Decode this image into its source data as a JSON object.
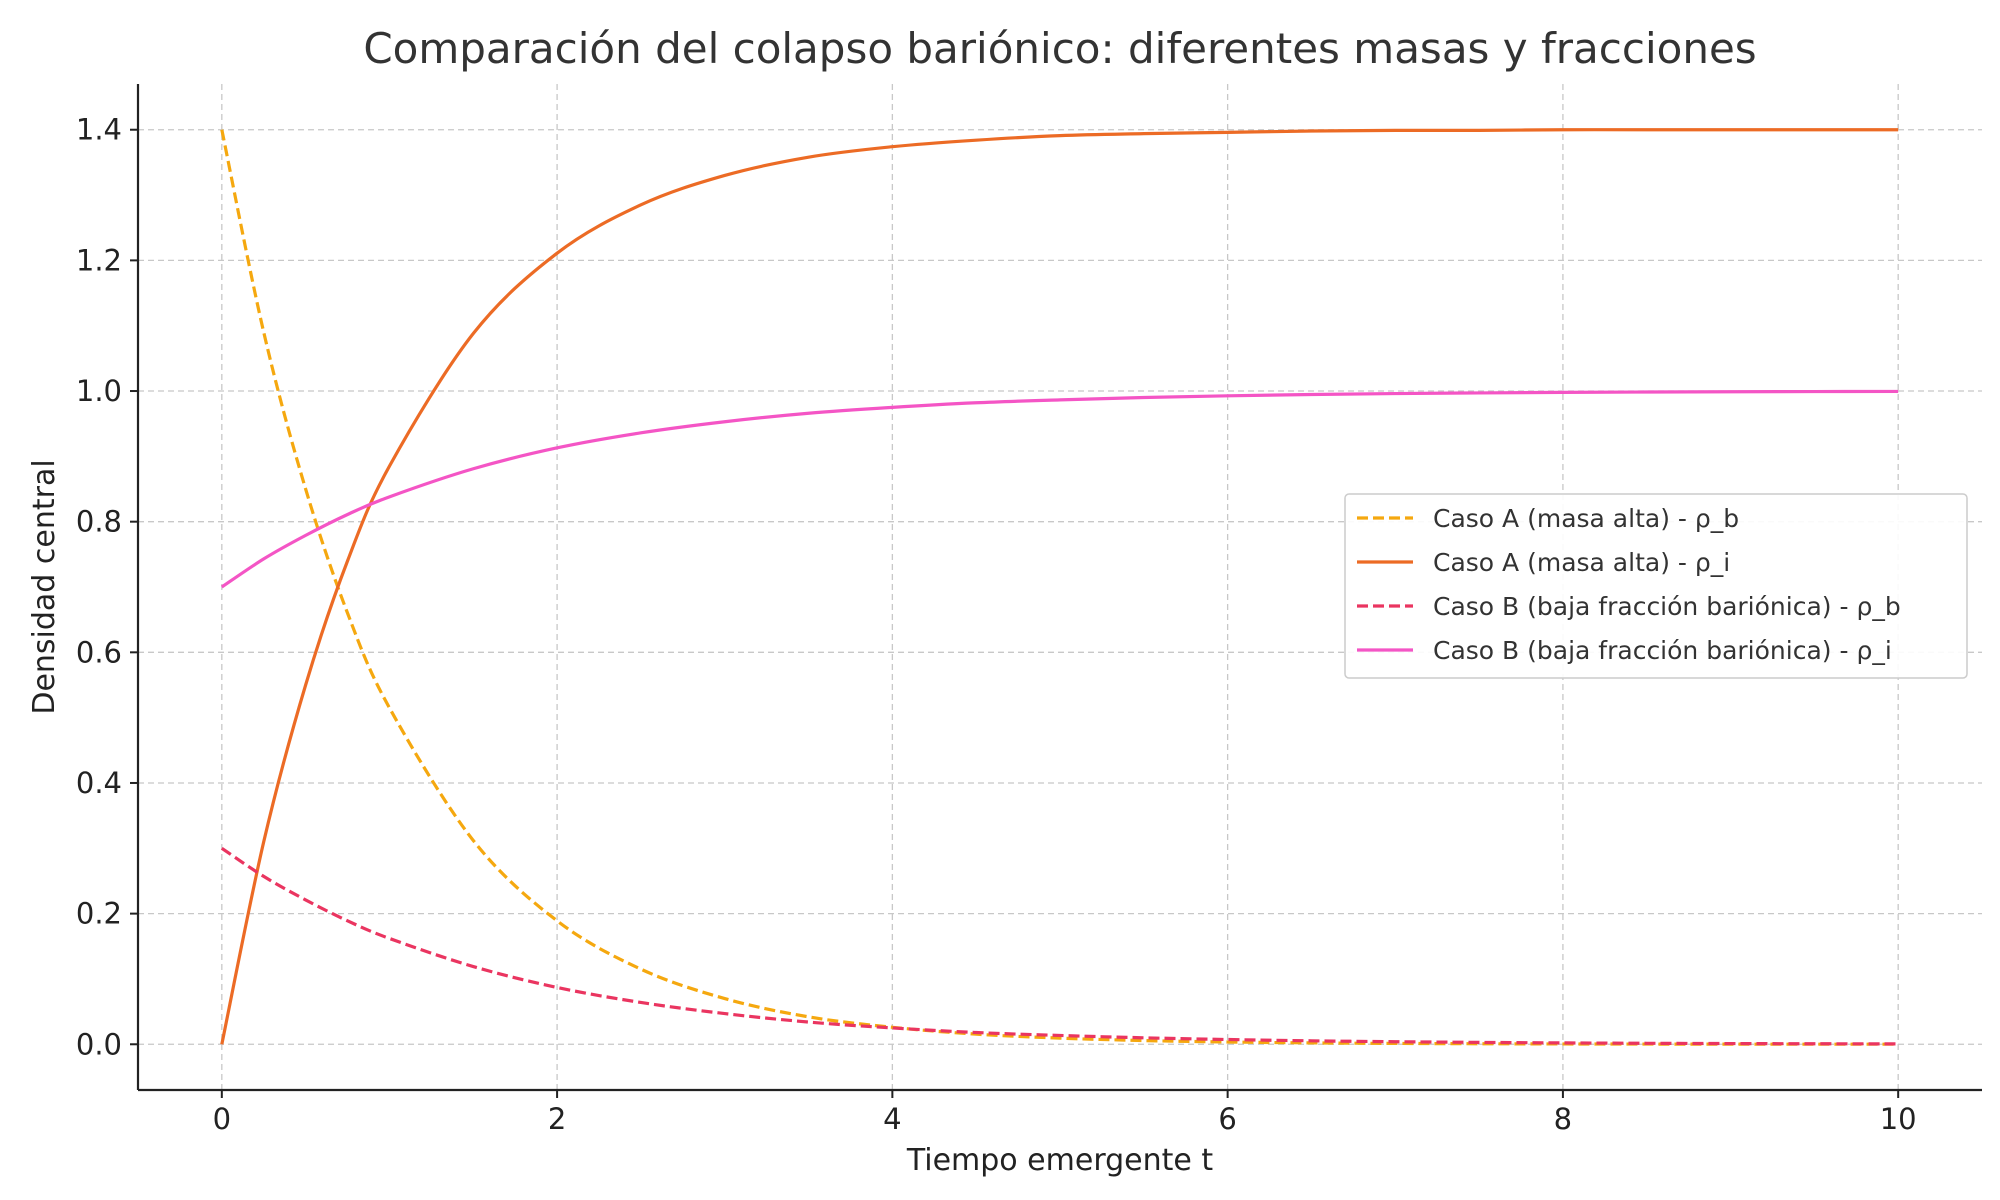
{
  "chart_data": {
    "type": "line",
    "title": "Comparación del colapso bariónico: diferentes masas y fracciones",
    "xlabel": "Tiempo emergente t",
    "ylabel": "Densidad central",
    "xlim": [
      -0.5,
      10.5
    ],
    "ylim": [
      -0.07,
      1.47
    ],
    "xticks": [
      0,
      2,
      4,
      6,
      8,
      10
    ],
    "yticks": [
      0.0,
      0.2,
      0.4,
      0.6,
      0.8,
      1.0,
      1.2,
      1.4
    ],
    "xtick_labels": [
      "0",
      "2",
      "4",
      "6",
      "8",
      "10"
    ],
    "ytick_labels": [
      "0.0",
      "0.2",
      "0.4",
      "0.6",
      "0.8",
      "1.0",
      "1.2",
      "1.4"
    ],
    "grid": true,
    "legend_position": "center-right",
    "x": [
      0,
      0.25,
      0.5,
      0.75,
      1,
      1.5,
      2,
      2.5,
      3,
      3.5,
      4,
      4.5,
      5,
      5.5,
      6,
      6.5,
      7,
      7.5,
      8,
      8.5,
      9,
      9.5,
      10
    ],
    "series": [
      {
        "name": "Caso A (masa alta) - ρ_b",
        "color": "#f5a80f",
        "dashed": true,
        "values": [
          1.4,
          1.09,
          0.85,
          0.66,
          0.515,
          0.312,
          0.189,
          0.115,
          0.07,
          0.042,
          0.026,
          0.0155,
          0.0094,
          0.0057,
          0.0035,
          0.0021,
          0.0013,
          0.0008,
          0.0005,
          0.0003,
          0.0002,
          0.0001,
          0.0001
        ]
      },
      {
        "name": "Caso A (masa alta) - ρ_i",
        "color": "#ec6b25",
        "dashed": false,
        "values": [
          0.0,
          0.31,
          0.55,
          0.74,
          0.885,
          1.088,
          1.211,
          1.285,
          1.33,
          1.358,
          1.374,
          1.384,
          1.391,
          1.394,
          1.396,
          1.398,
          1.399,
          1.399,
          1.4,
          1.4,
          1.4,
          1.4,
          1.4
        ]
      },
      {
        "name": "Caso B (baja fracción bariónica) - ρ_b",
        "color": "#ea3560",
        "dashed": true,
        "values": [
          0.3,
          0.257,
          0.221,
          0.189,
          0.162,
          0.119,
          0.087,
          0.064,
          0.047,
          0.034,
          0.025,
          0.018,
          0.0135,
          0.0099,
          0.0073,
          0.0053,
          0.0039,
          0.0029,
          0.0021,
          0.0015,
          0.0011,
          0.0008,
          0.0006
        ]
      },
      {
        "name": "Caso B (baja fracción bariónica) - ρ_i",
        "color": "#f455c5",
        "dashed": false,
        "values": [
          0.7,
          0.743,
          0.779,
          0.811,
          0.838,
          0.881,
          0.913,
          0.936,
          0.953,
          0.966,
          0.975,
          0.982,
          0.9865,
          0.9901,
          0.9927,
          0.9947,
          0.9961,
          0.9971,
          0.9979,
          0.9985,
          0.9989,
          0.9992,
          0.9994
        ]
      }
    ]
  }
}
